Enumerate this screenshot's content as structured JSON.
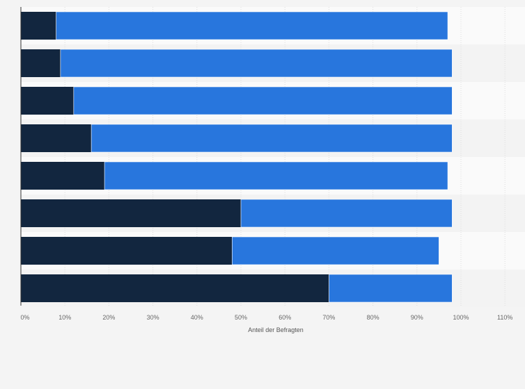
{
  "chart_data": {
    "type": "bar",
    "orientation": "horizontal",
    "stacked": true,
    "title": "",
    "xlabel": "Anteil der Befragten",
    "ylabel": "",
    "xlim": [
      0,
      110
    ],
    "x_ticks": [
      0,
      10,
      20,
      30,
      40,
      50,
      60,
      70,
      80,
      90,
      100,
      110
    ],
    "x_tick_labels": [
      "0%",
      "10%",
      "20%",
      "30%",
      "40%",
      "50%",
      "60%",
      "70%",
      "80%",
      "90%",
      "100%",
      "110%"
    ],
    "grid": true,
    "categories": [
      "",
      "",
      "",
      "",
      "",
      "",
      "",
      ""
    ],
    "series": [
      {
        "name": "",
        "color": "#12263f",
        "values": [
          8,
          9,
          12,
          16,
          19,
          50,
          48,
          70
        ]
      },
      {
        "name": "",
        "color": "#2876dd",
        "values": [
          89,
          89,
          86,
          82,
          78,
          48,
          47,
          28
        ]
      }
    ]
  },
  "colors": {
    "background": "#f4f4f4",
    "row_band_light": "#fafafa",
    "row_band_dark": "#f3f3f3",
    "grid": "#dddddd",
    "axis": "#333333"
  }
}
